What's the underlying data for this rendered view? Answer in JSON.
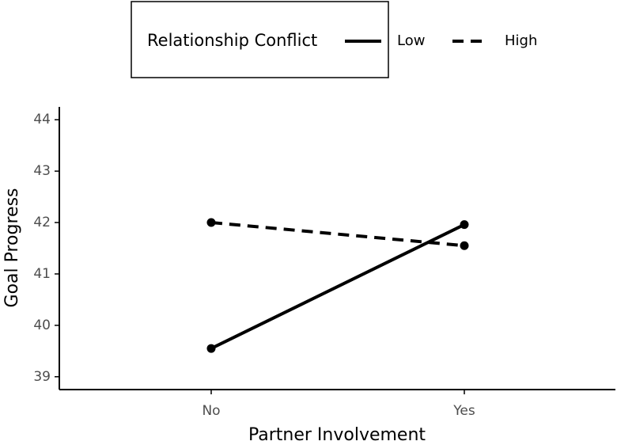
{
  "chart_data": {
    "type": "line",
    "categories": [
      "No",
      "Yes"
    ],
    "x_label": "Partner Involvement",
    "y_label": "Goal Progress",
    "legend_title": "Relationship Conflict",
    "legend": "top",
    "series": [
      {
        "name": "Low",
        "color": "#000000",
        "linestyle": "solid",
        "values": [
          39.55,
          41.96
        ]
      },
      {
        "name": "High",
        "color": "#000000",
        "linestyle": "dashed",
        "values": [
          42.0,
          41.55
        ]
      }
    ],
    "ylim": [
      38.75,
      44.25
    ],
    "yticks": [
      39,
      40,
      41,
      42,
      43,
      44
    ],
    "grid": false
  }
}
